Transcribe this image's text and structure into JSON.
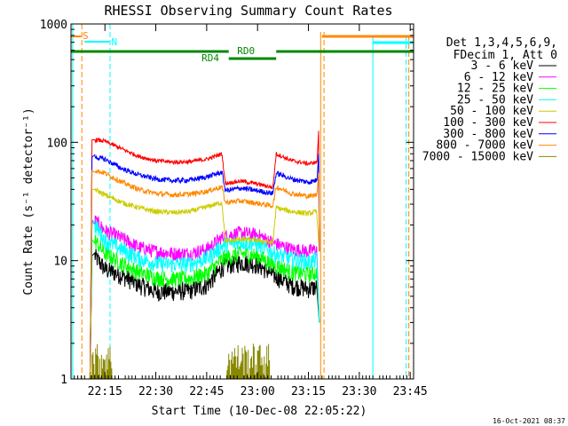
{
  "chart_data": {
    "type": "line",
    "title": "RHESSI Observing Summary Count Rates",
    "xlabel": "Start Time (10-Dec-08 22:05:22)",
    "ylabel": "Count Rate (s⁻¹ detector⁻¹)",
    "yscale": "log",
    "ylim": [
      1,
      1000
    ],
    "xlim_minutes": [
      0,
      101
    ],
    "x_ticks": [
      {
        "m": 10,
        "label": "22:15"
      },
      {
        "m": 25,
        "label": "22:30"
      },
      {
        "m": 40,
        "label": "22:45"
      },
      {
        "m": 55,
        "label": "23:00"
      },
      {
        "m": 70,
        "label": "23:15"
      },
      {
        "m": 85,
        "label": "23:30"
      },
      {
        "m": 100,
        "label": "23:45"
      }
    ],
    "y_ticks": [
      {
        "v": 1,
        "label": "1"
      },
      {
        "v": 10,
        "label": "10"
      },
      {
        "v": 100,
        "label": "100"
      },
      {
        "v": 1000,
        "label": "1000"
      }
    ],
    "legend_header": [
      "Det 1,3,4,5,6,9,",
      "FDecim 1, Att 0"
    ],
    "series": [
      {
        "name": "3 - 6 keV",
        "color": "#000000",
        "x": [
          7,
          10,
          15,
          20,
          25,
          30,
          35,
          40,
          45,
          50,
          55,
          60,
          65,
          70,
          72.5
        ],
        "values": [
          11,
          8.5,
          7.5,
          6.3,
          5.5,
          5.5,
          5.6,
          6.2,
          9,
          9.7,
          9.3,
          7.5,
          6.2,
          5.8,
          6
        ]
      },
      {
        "name": "6 - 12 keV",
        "color": "#ff00ff",
        "x": [
          7,
          10,
          15,
          20,
          25,
          30,
          35,
          40,
          45,
          50,
          55,
          60,
          65,
          70,
          72.5
        ],
        "values": [
          22,
          18,
          15.5,
          13,
          12,
          11.5,
          11.5,
          12.5,
          16,
          17.2,
          16.5,
          14,
          12.5,
          12,
          12.5
        ]
      },
      {
        "name": "12 - 25 keV",
        "color": "#00ff00",
        "x": [
          7,
          10,
          15,
          20,
          25,
          30,
          35,
          40,
          45,
          50,
          55,
          60,
          65,
          70,
          72.5
        ],
        "values": [
          15,
          11.5,
          9.5,
          8,
          7.2,
          7,
          7.1,
          7.8,
          10.5,
          11.5,
          11,
          9.2,
          8,
          7.7,
          8
        ]
      },
      {
        "name": "25 - 50 keV",
        "color": "#00ffff",
        "x": [
          7,
          10,
          15,
          20,
          25,
          30,
          35,
          40,
          45,
          50,
          55,
          60,
          65,
          70,
          72.5
        ],
        "values": [
          20,
          15,
          12.5,
          10.5,
          9.5,
          9.3,
          9.4,
          10.5,
          13.5,
          14.5,
          13.8,
          11.5,
          10.3,
          9.8,
          10.2
        ]
      },
      {
        "name": "50 - 100 keV",
        "color": "#cccc00",
        "x": [
          7,
          10,
          15,
          20,
          25,
          30,
          35,
          40,
          44.5,
          45.5,
          50,
          55,
          59.5,
          60.5,
          65,
          70,
          72.5
        ],
        "values": [
          40,
          36,
          31,
          28,
          26,
          25.5,
          26,
          28.5,
          31,
          14.5,
          15.2,
          14.8,
          14.2,
          28,
          26,
          25,
          26
        ]
      },
      {
        "name": "100 - 300 keV",
        "color": "#ff0000",
        "x": [
          7,
          10,
          15,
          20,
          25,
          30,
          35,
          40,
          44.5,
          45.5,
          50,
          55,
          59.5,
          60.5,
          65,
          70,
          72.5,
          73
        ],
        "values": [
          105,
          102,
          88,
          76,
          70,
          68,
          68.5,
          72,
          80,
          45,
          47,
          44.5,
          41.5,
          80,
          70,
          66,
          68,
          125
        ]
      },
      {
        "name": "300 - 800 keV",
        "color": "#0000ff",
        "x": [
          7,
          10,
          15,
          20,
          25,
          30,
          35,
          40,
          44.5,
          45.5,
          50,
          55,
          59.5,
          60.5,
          65,
          70,
          72.5,
          73
        ],
        "values": [
          75,
          72,
          60,
          53,
          49,
          47.5,
          48,
          51,
          56,
          39,
          41,
          39,
          37,
          55,
          49,
          46,
          48,
          80
        ]
      },
      {
        "name": "800 - 7000 keV",
        "color": "#ff8800",
        "x": [
          7,
          10,
          15,
          20,
          25,
          30,
          35,
          40,
          44.5,
          45.5,
          50,
          55,
          59.5,
          60.5,
          65,
          70,
          72.5,
          73
        ],
        "values": [
          58,
          55,
          46,
          40,
          37,
          36,
          36.5,
          38.5,
          42,
          31,
          32,
          30.5,
          29,
          42,
          37,
          35,
          36,
          55
        ]
      },
      {
        "name": "7000 - 15000 keV",
        "color": "#888800",
        "x": [
          6,
          8,
          10,
          12,
          46,
          48,
          52,
          56,
          58
        ],
        "values": [
          1.5,
          1.8,
          1.3,
          1.5,
          1.4,
          1.9,
          1.5,
          1.7,
          1.4
        ]
      }
    ],
    "flags": [
      {
        "name": "S",
        "color": "#ff8800"
      },
      {
        "name": "N",
        "color": "#00ffff"
      },
      {
        "name": "RD0",
        "color": "#008800"
      },
      {
        "name": "RD4",
        "color": "#008800"
      }
    ],
    "timestamp": "16-Oct-2021 08:37"
  }
}
